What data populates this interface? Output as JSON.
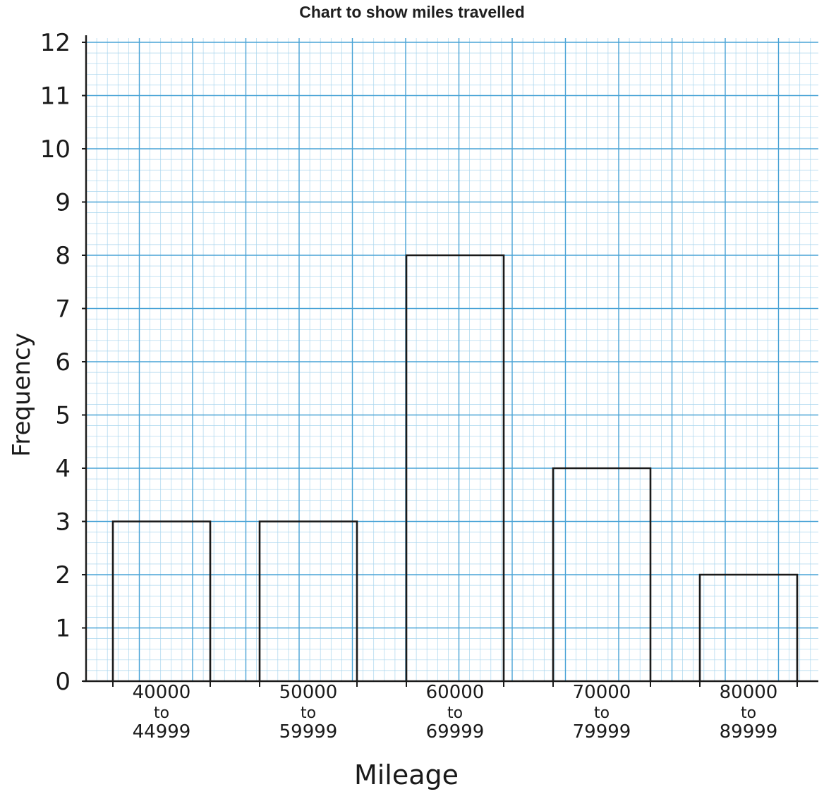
{
  "chart_data": {
    "type": "bar",
    "title": "Chart to show miles travelled",
    "xlabel": "Mileage",
    "ylabel": "Frequency",
    "categories": [
      [
        "40000",
        "to",
        "44999"
      ],
      [
        "50000",
        "to",
        "59999"
      ],
      [
        "60000",
        "to",
        "69999"
      ],
      [
        "70000",
        "to",
        "79999"
      ],
      [
        "80000",
        "to",
        "89999"
      ]
    ],
    "values": [
      3,
      3,
      8,
      4,
      2
    ],
    "ylim": [
      0,
      12
    ],
    "yticks": [
      "0",
      "1",
      "2",
      "3",
      "4",
      "5",
      "6",
      "7",
      "8",
      "9",
      "10",
      "11",
      "12"
    ],
    "grid": true,
    "colors": {
      "grid_major": "#49a3d6",
      "grid_minor": "#a9d5ee",
      "bar_stroke": "#1a1a1a",
      "paper": "#ffffff"
    }
  }
}
